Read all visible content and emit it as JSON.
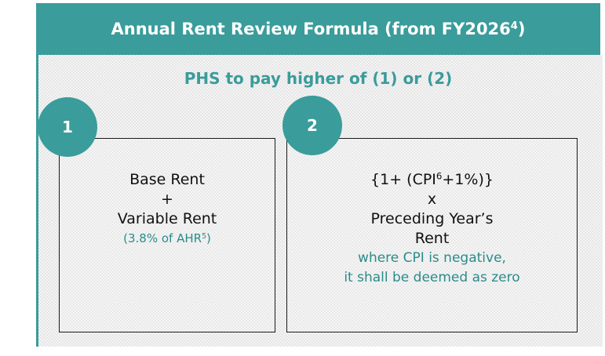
{
  "header": {
    "title": "Annual Rent Review Formula (from FY2026",
    "title_sup": "4",
    "title_end": ")"
  },
  "subtitle": "PHS to pay higher of (1) or (2)",
  "options": [
    {
      "number": "1",
      "lines": [
        "Base Rent",
        "+",
        "Variable Rent"
      ],
      "note": "(3.8% of AHR",
      "note_sup": "5",
      "note_end": ")"
    },
    {
      "number": "2",
      "first_pre": "{1+ (CPI",
      "first_sup": "6",
      "first_post": "+1%)}",
      "lines": [
        "x",
        "Preceding Year’s",
        "Rent"
      ],
      "note_lines": [
        "where CPI is negative,",
        "it shall be deemed as zero"
      ]
    }
  ]
}
